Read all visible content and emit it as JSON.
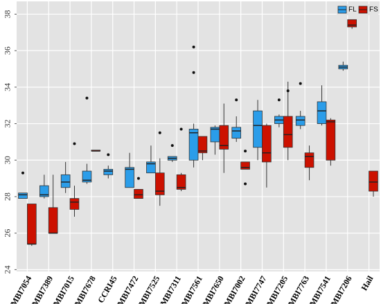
{
  "chart_data": {
    "type": "box",
    "categories": [
      "MBI7054",
      "MBI7389",
      "MBI7015",
      "MBI7678",
      "CCRI45",
      "MBI7472",
      "MBI7525",
      "MBI7311",
      "MBI7561",
      "MBI7650",
      "MBI7002",
      "MBI7747",
      "MBI7205",
      "MBI7763",
      "MBI7541",
      "MBI7206",
      "Hail"
    ],
    "ylim": [
      23.9,
      38.7
    ],
    "yticks": [
      24,
      26,
      28,
      30,
      32,
      34,
      36,
      38
    ],
    "grid": true,
    "legend": "top-right",
    "series": [
      {
        "name": "FL",
        "color": "#2b9de9",
        "boxes": [
          {
            "min": 27.9,
            "q1": 27.9,
            "median": 28.1,
            "q3": 28.2,
            "max": 28.2,
            "outliers": [
              29.3
            ]
          },
          {
            "min": 27.9,
            "q1": 28.0,
            "median": 28.1,
            "q3": 28.6,
            "max": 29.2,
            "outliers": []
          },
          {
            "min": 28.2,
            "q1": 28.5,
            "median": 28.8,
            "q3": 29.2,
            "max": 29.9,
            "outliers": []
          },
          {
            "min": 28.7,
            "q1": 28.8,
            "median": 28.9,
            "q3": 29.4,
            "max": 29.8,
            "outliers": [
              33.4
            ]
          },
          {
            "min": 29.0,
            "q1": 29.2,
            "median": 29.4,
            "q3": 29.5,
            "max": 29.7,
            "outliers": [
              30.3
            ]
          },
          {
            "min": 28.5,
            "q1": 28.5,
            "median": 29.5,
            "q3": 29.6,
            "max": 30.4,
            "outliers": []
          },
          {
            "min": 29.3,
            "q1": 29.3,
            "median": 29.8,
            "q3": 29.9,
            "max": 30.8,
            "outliers": []
          },
          {
            "min": 29.9,
            "q1": 30.0,
            "median": 30.1,
            "q3": 30.2,
            "max": 30.2,
            "outliers": [
              30.8
            ]
          },
          {
            "min": 29.6,
            "q1": 30.0,
            "median": 31.5,
            "q3": 31.7,
            "max": 32.0,
            "outliers": [
              36.2,
              34.8
            ]
          },
          {
            "min": 30.3,
            "q1": 31.0,
            "median": 31.7,
            "q3": 31.8,
            "max": 31.9,
            "outliers": []
          },
          {
            "min": 31.0,
            "q1": 31.2,
            "median": 31.6,
            "q3": 31.8,
            "max": 32.4,
            "outliers": [
              33.3
            ]
          },
          {
            "min": 30.0,
            "q1": 30.7,
            "median": 31.9,
            "q3": 32.7,
            "max": 33.3,
            "outliers": []
          },
          {
            "min": 31.8,
            "q1": 32.0,
            "median": 32.2,
            "q3": 32.4,
            "max": 32.5,
            "outliers": [
              33.3
            ]
          },
          {
            "min": 31.7,
            "q1": 31.9,
            "median": 32.2,
            "q3": 32.4,
            "max": 32.7,
            "outliers": [
              34.2
            ]
          },
          {
            "min": 31.9,
            "q1": 32.0,
            "median": 32.7,
            "q3": 33.2,
            "max": 34.1,
            "outliers": []
          },
          {
            "min": 34.9,
            "q1": 35.0,
            "median": 35.1,
            "q3": 35.2,
            "max": 35.4,
            "outliers": []
          },
          null
        ]
      },
      {
        "name": "FS",
        "color": "#cc1100",
        "boxes": [
          {
            "min": 25.3,
            "q1": 25.4,
            "median": 25.4,
            "q3": 27.6,
            "max": 27.6,
            "outliers": []
          },
          {
            "min": 26.0,
            "q1": 26.0,
            "median": 26.0,
            "q3": 27.4,
            "max": 29.2,
            "outliers": []
          },
          {
            "min": 26.9,
            "q1": 27.3,
            "median": 27.7,
            "q3": 27.9,
            "max": 28.6,
            "outliers": [
              30.9
            ]
          },
          {
            "min": 30.5,
            "q1": 30.5,
            "median": 30.5,
            "q3": 30.55,
            "max": 30.55,
            "outliers": []
          },
          null,
          {
            "min": 27.9,
            "q1": 27.9,
            "median": 28.1,
            "q3": 28.4,
            "max": 28.4,
            "outliers": [
              29.0
            ]
          },
          {
            "min": 27.5,
            "q1": 28.1,
            "median": 28.3,
            "q3": 29.3,
            "max": 30.1,
            "outliers": [
              31.5
            ]
          },
          {
            "min": 28.3,
            "q1": 28.4,
            "median": 28.5,
            "q3": 29.2,
            "max": 29.3,
            "outliers": [
              31.7
            ]
          },
          {
            "min": 30.0,
            "q1": 30.4,
            "median": 30.5,
            "q3": 31.3,
            "max": 31.3,
            "outliers": []
          },
          {
            "min": 29.3,
            "q1": 30.6,
            "median": 30.8,
            "q3": 31.9,
            "max": 33.1,
            "outliers": []
          },
          {
            "min": 29.5,
            "q1": 29.5,
            "median": 29.6,
            "q3": 29.9,
            "max": 29.9,
            "outliers": [
              30.5,
              28.7
            ]
          },
          {
            "min": 28.5,
            "q1": 29.9,
            "median": 30.4,
            "q3": 31.9,
            "max": 32.0,
            "outliers": []
          },
          {
            "min": 30.0,
            "q1": 30.7,
            "median": 31.4,
            "q3": 32.4,
            "max": 34.3,
            "outliers": [
              33.8
            ]
          },
          {
            "min": 28.9,
            "q1": 29.6,
            "median": 30.2,
            "q3": 30.4,
            "max": 30.8,
            "outliers": []
          },
          {
            "min": 29.7,
            "q1": 30.0,
            "median": 32.1,
            "q3": 32.2,
            "max": 32.3,
            "outliers": []
          },
          {
            "min": 37.2,
            "q1": 37.3,
            "median": 37.4,
            "q3": 37.7,
            "max": 37.7,
            "outliers": []
          },
          {
            "min": 28.0,
            "q1": 28.3,
            "median": 28.8,
            "q3": 29.4,
            "max": 29.4,
            "outliers": []
          }
        ]
      }
    ]
  }
}
